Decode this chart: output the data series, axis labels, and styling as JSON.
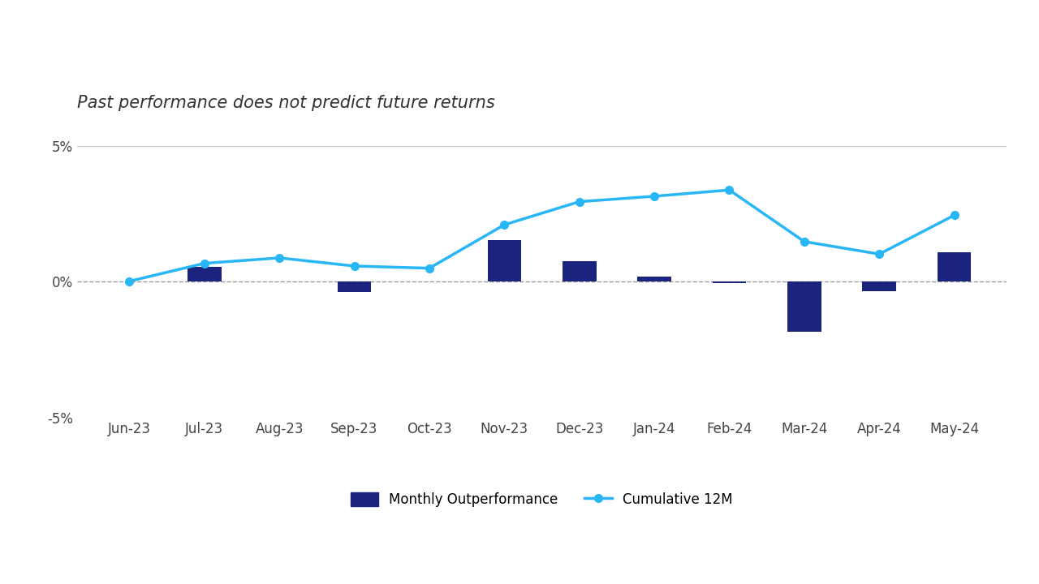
{
  "categories": [
    "Jun-23",
    "Jul-23",
    "Aug-23",
    "Sep-23",
    "Oct-23",
    "Nov-23",
    "Dec-23",
    "Jan-24",
    "Feb-24",
    "Mar-24",
    "Apr-24",
    "May-24"
  ],
  "monthly_outperformance": [
    0.0,
    0.55,
    0.0,
    -0.38,
    0.0,
    1.55,
    0.75,
    0.18,
    -0.05,
    -1.85,
    -0.35,
    1.1
  ],
  "cumulative_12m": [
    0.02,
    0.68,
    0.88,
    0.58,
    0.5,
    2.1,
    2.95,
    3.15,
    3.38,
    1.48,
    1.02,
    2.45
  ],
  "bar_color": "#1a237e",
  "line_color": "#29b6f6",
  "bar_width": 0.45,
  "title": "Past performance does not predict future returns",
  "legend_bar": "Monthly Outperformance",
  "legend_line": "Cumulative 12M",
  "ylim": [
    -5,
    5
  ],
  "yticks": [
    -5,
    0,
    5
  ],
  "ytick_labels": [
    "-5%",
    "0%",
    "5%"
  ],
  "background_color": "#ffffff",
  "grid_color": "#c8c8c8",
  "title_fontsize": 15,
  "tick_fontsize": 12,
  "legend_fontsize": 12
}
